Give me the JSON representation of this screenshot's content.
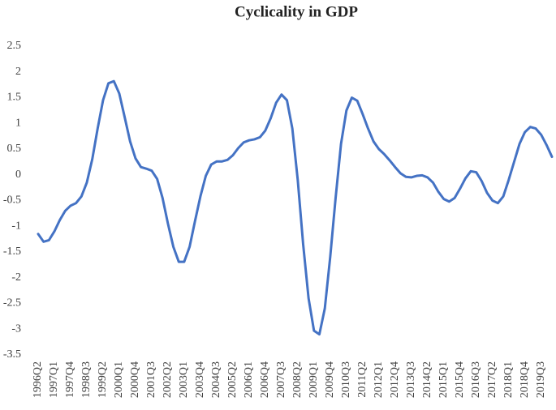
{
  "chart_data": {
    "type": "line",
    "title": "Cyclicality in GDP",
    "categories": [
      "1996Q2",
      null,
      null,
      "1997Q1",
      null,
      null,
      "1997Q4",
      null,
      null,
      "1998Q3",
      null,
      null,
      "1999Q2",
      null,
      null,
      "2000Q1",
      null,
      null,
      "2000Q4",
      null,
      null,
      "2001Q3",
      null,
      null,
      "2002Q2",
      null,
      null,
      "2003Q1",
      null,
      null,
      "2003Q4",
      null,
      null,
      "2004Q3",
      null,
      null,
      "2005Q2",
      null,
      null,
      "2006Q1",
      null,
      null,
      "2006Q4",
      null,
      null,
      "2007Q3",
      null,
      null,
      "2008Q2",
      null,
      null,
      "2009Q1",
      null,
      null,
      "2009Q4",
      null,
      null,
      "2010Q3",
      null,
      null,
      "2011Q2",
      null,
      null,
      "2012Q1",
      null,
      null,
      "2012Q4",
      null,
      null,
      "2013Q3",
      null,
      null,
      "2014Q2",
      null,
      null,
      "2015Q1",
      null,
      null,
      "2015Q4",
      null,
      null,
      "2016Q3",
      null,
      null,
      "2017Q2",
      null,
      null,
      "2018Q1",
      null,
      null,
      "2018Q4",
      null,
      null,
      "2019Q3",
      null,
      null
    ],
    "values": [
      -1.15,
      -1.3,
      -1.27,
      -1.1,
      -0.88,
      -0.7,
      -0.6,
      -0.55,
      -0.42,
      -0.15,
      0.3,
      0.9,
      1.45,
      1.78,
      1.82,
      1.58,
      1.12,
      0.65,
      0.32,
      0.15,
      0.12,
      0.08,
      -0.08,
      -0.45,
      -0.95,
      -1.4,
      -1.69,
      -1.69,
      -1.4,
      -0.9,
      -0.42,
      -0.02,
      0.2,
      0.26,
      0.26,
      0.29,
      0.38,
      0.52,
      0.63,
      0.67,
      0.69,
      0.73,
      0.86,
      1.1,
      1.4,
      1.56,
      1.45,
      0.9,
      -0.1,
      -1.35,
      -2.4,
      -3.03,
      -3.1,
      -2.6,
      -1.6,
      -0.45,
      0.6,
      1.25,
      1.5,
      1.44,
      1.18,
      0.9,
      0.65,
      0.5,
      0.4,
      0.28,
      0.15,
      0.03,
      -0.04,
      -0.05,
      -0.02,
      -0.01,
      -0.05,
      -0.15,
      -0.33,
      -0.47,
      -0.52,
      -0.45,
      -0.27,
      -0.07,
      0.07,
      0.05,
      -0.12,
      -0.35,
      -0.5,
      -0.55,
      -0.42,
      -0.1,
      0.25,
      0.6,
      0.83,
      0.93,
      0.9,
      0.78,
      0.58,
      0.35
    ],
    "color": "#4472c4",
    "ylim": [
      -3.5,
      2.5
    ],
    "yticks": [
      2.5,
      2,
      1.5,
      1,
      0.5,
      0,
      -0.5,
      -1,
      -1.5,
      -2,
      -2.5,
      -3,
      -3.5
    ],
    "grid": false
  }
}
